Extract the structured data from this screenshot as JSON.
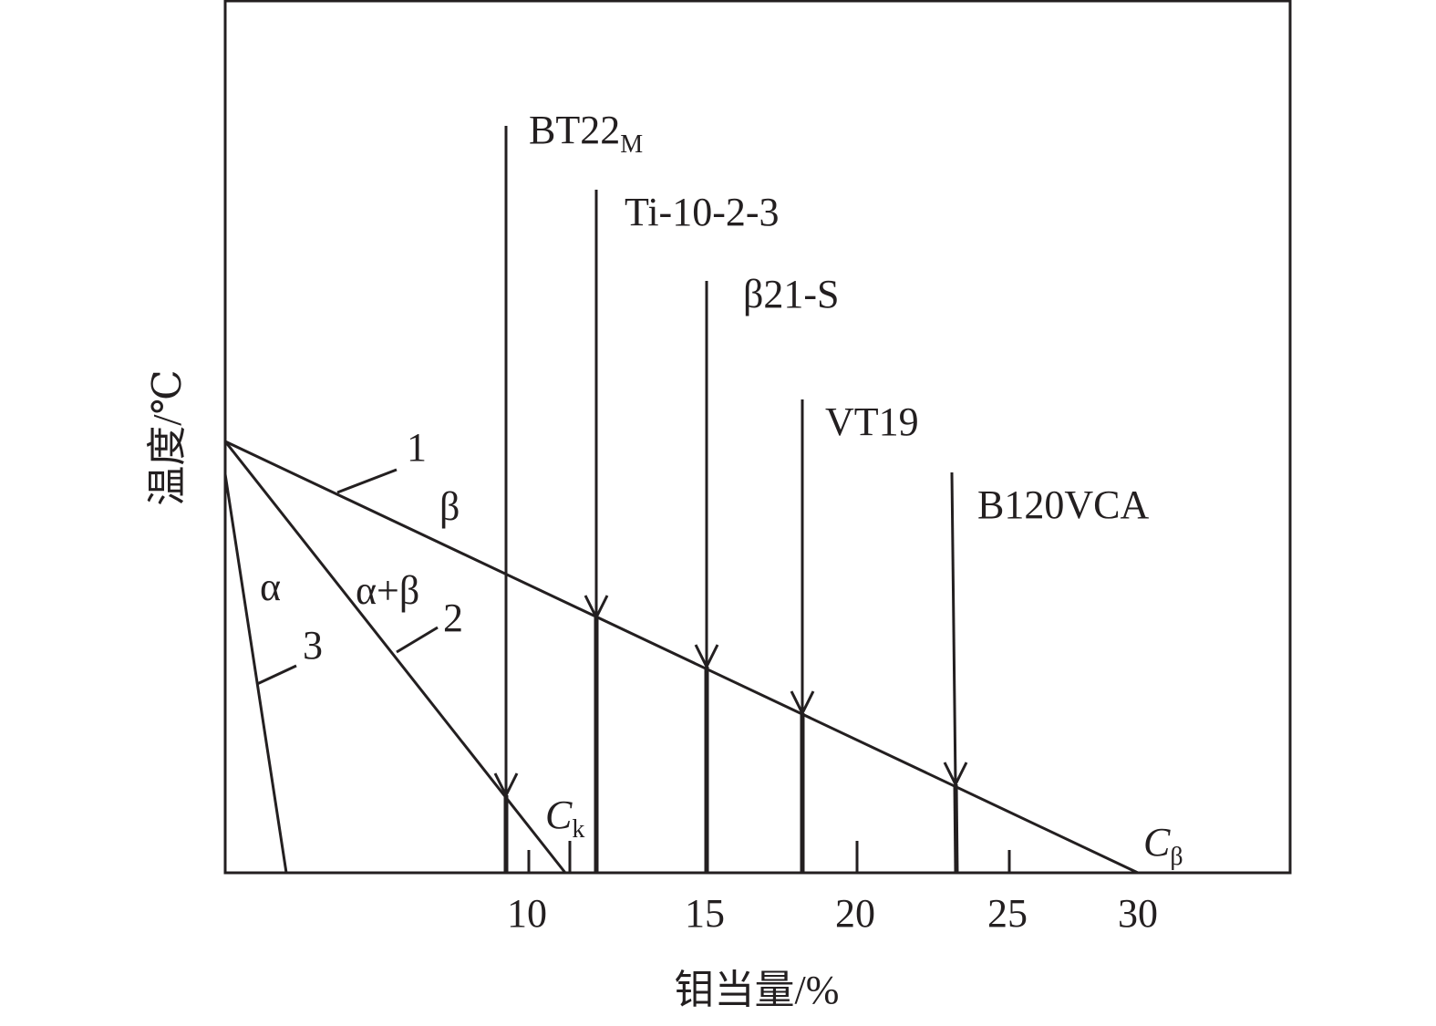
{
  "axes": {
    "x_label": "钼当量/%",
    "y_label": "温度/℃",
    "x_ticks": [
      "10",
      "15",
      "20",
      "25",
      "30"
    ]
  },
  "alloys": [
    {
      "name": "BT22",
      "sub": "M"
    },
    {
      "name": "Ti-10-2-3"
    },
    {
      "name": "β21-S"
    },
    {
      "name": "VT19"
    },
    {
      "name": "B120VCA"
    }
  ],
  "curves": {
    "line1": "1",
    "line2": "2",
    "line3": "3"
  },
  "regions": {
    "beta": "β",
    "alpha": "α",
    "alpha_beta": "α+β"
  },
  "points": {
    "ck": {
      "name": "C",
      "sub": "k"
    },
    "cbeta": {
      "name": "C",
      "sub": "β"
    }
  }
}
